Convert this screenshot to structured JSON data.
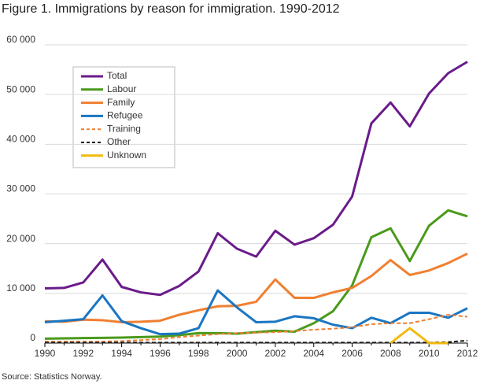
{
  "chart_data": {
    "type": "line",
    "title": "Figure 1.  Immigrations by reason for immigration. 1990-2012",
    "source": "Source: Statistics Norway.",
    "x": [
      1990,
      1991,
      1992,
      1993,
      1994,
      1995,
      1996,
      1997,
      1998,
      1999,
      2000,
      2001,
      2002,
      2003,
      2004,
      2005,
      2006,
      2007,
      2008,
      2009,
      2010,
      2011,
      2012
    ],
    "xlim": [
      1990,
      2012
    ],
    "xticks": [
      1990,
      1992,
      1994,
      1996,
      1998,
      2000,
      2002,
      2004,
      2006,
      2008,
      2010,
      2012
    ],
    "ylim": [
      0,
      60000
    ],
    "yticks": [
      0,
      {
        "value": 10000,
        "label": "10 000"
      },
      {
        "value": 20000,
        "label": "20 000"
      },
      {
        "value": 30000,
        "label": "30 000"
      },
      {
        "value": 40000,
        "label": "40 000"
      },
      {
        "value": 50000,
        "label": "50 000"
      },
      {
        "value": 60000,
        "label": "60 000"
      }
    ],
    "grid": true,
    "legend": "upper left",
    "series": [
      {
        "name": "Total",
        "color": "#6a1b8a",
        "dashed": false,
        "values": [
          11000,
          11100,
          12200,
          16800,
          11300,
          10200,
          9700,
          11500,
          14400,
          22100,
          19000,
          17400,
          22600,
          19800,
          21100,
          23800,
          29500,
          44200,
          48400,
          43600,
          50200,
          54300,
          56600
        ]
      },
      {
        "name": "Labour",
        "color": "#4a9a1a",
        "dashed": false,
        "values": [
          900,
          950,
          1000,
          1050,
          1100,
          1200,
          1300,
          1600,
          2000,
          2000,
          1900,
          2200,
          2500,
          2300,
          4000,
          6400,
          11600,
          21300,
          23100,
          16500,
          23600,
          26700,
          25500
        ]
      },
      {
        "name": "Family",
        "color": "#f07f30",
        "dashed": false,
        "values": [
          4400,
          4300,
          4700,
          4600,
          4200,
          4300,
          4500,
          5700,
          6600,
          7400,
          7500,
          8300,
          12800,
          9100,
          9100,
          10200,
          11100,
          13500,
          16700,
          13700,
          14600,
          16100,
          18000
        ]
      },
      {
        "name": "Refugee",
        "color": "#1a76c2",
        "dashed": false,
        "values": [
          4200,
          4500,
          4800,
          9600,
          4400,
          3000,
          1800,
          1900,
          3000,
          10600,
          7200,
          4200,
          4300,
          5400,
          5000,
          3700,
          3000,
          5100,
          4000,
          6100,
          6100,
          5100,
          7000
        ]
      },
      {
        "name": "Training",
        "color": "#f07f30",
        "dashed": true,
        "values": [
          300,
          300,
          300,
          300,
          400,
          600,
          800,
          1200,
          1500,
          1800,
          2000,
          2100,
          2200,
          2400,
          2700,
          2900,
          3200,
          3800,
          4000,
          4000,
          4800,
          5700,
          5300
        ]
      },
      {
        "name": "Other",
        "color": "#1a1a1a",
        "dashed": true,
        "values": [
          100,
          100,
          100,
          100,
          100,
          100,
          100,
          100,
          100,
          100,
          100,
          100,
          100,
          100,
          100,
          100,
          100,
          100,
          100,
          100,
          100,
          200,
          500
        ]
      },
      {
        "name": "Unknown",
        "color": "#f2b90f",
        "dashed": false,
        "values": [
          null,
          null,
          null,
          null,
          null,
          null,
          null,
          null,
          null,
          null,
          null,
          null,
          null,
          null,
          null,
          null,
          null,
          null,
          0,
          3000,
          0,
          0,
          null
        ]
      }
    ]
  }
}
